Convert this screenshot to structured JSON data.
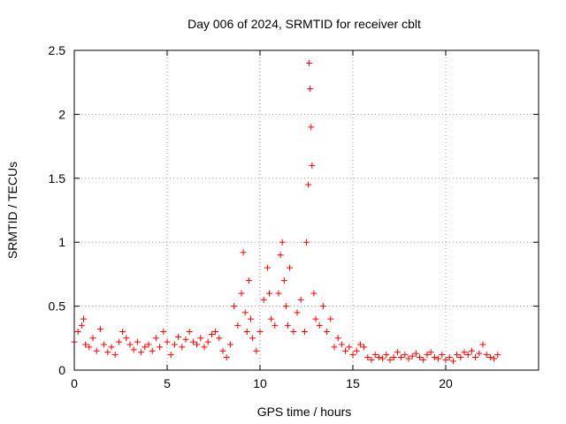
{
  "chart_data": {
    "type": "scatter",
    "title": "Day 006 of 2024, SRMTID for receiver cblt",
    "xlabel": "GPS time / hours",
    "ylabel": "SRMTID / TECUs",
    "xlim": [
      0,
      25
    ],
    "ylim": [
      0,
      2.5
    ],
    "xticks": [
      0,
      5,
      10,
      15,
      20
    ],
    "xtick_labels": [
      "0",
      "5",
      "10",
      "15",
      "20"
    ],
    "yticks": [
      0,
      0.5,
      1,
      1.5,
      2,
      2.5
    ],
    "ytick_labels": [
      "0",
      "0.5",
      "1",
      "1.5",
      "2",
      "2.5"
    ],
    "grid": true,
    "marker": "plus",
    "color": "#ff0000",
    "series": [
      {
        "name": "SRMTID",
        "x": [
          0.0,
          0.2,
          0.4,
          0.5,
          0.6,
          0.8,
          1.0,
          1.2,
          1.4,
          1.6,
          1.8,
          2.0,
          2.2,
          2.4,
          2.6,
          2.8,
          3.0,
          3.2,
          3.4,
          3.6,
          3.8,
          4.0,
          4.2,
          4.4,
          4.6,
          4.8,
          5.0,
          5.2,
          5.4,
          5.6,
          5.8,
          6.0,
          6.2,
          6.4,
          6.6,
          6.8,
          7.0,
          7.2,
          7.4,
          7.6,
          7.8,
          8.0,
          8.2,
          8.4,
          8.6,
          8.8,
          9.0,
          9.1,
          9.2,
          9.3,
          9.4,
          9.5,
          9.6,
          9.8,
          10.0,
          10.2,
          10.4,
          10.5,
          10.6,
          10.8,
          11.0,
          11.1,
          11.2,
          11.3,
          11.4,
          11.5,
          11.6,
          11.8,
          12.0,
          12.2,
          12.4,
          12.5,
          12.6,
          12.65,
          12.7,
          12.75,
          12.8,
          12.9,
          13.0,
          13.2,
          13.4,
          13.6,
          13.8,
          14.0,
          14.2,
          14.4,
          14.6,
          14.8,
          15.0,
          15.2,
          15.4,
          15.6,
          15.8,
          16.0,
          16.2,
          16.4,
          16.6,
          16.8,
          17.0,
          17.2,
          17.4,
          17.6,
          17.8,
          18.0,
          18.2,
          18.4,
          18.6,
          18.8,
          19.0,
          19.2,
          19.4,
          19.6,
          19.8,
          20.0,
          20.2,
          20.4,
          20.6,
          20.8,
          21.0,
          21.2,
          21.4,
          21.6,
          21.8,
          22.0,
          22.2,
          22.4,
          22.6,
          22.8
        ],
        "y": [
          0.22,
          0.3,
          0.35,
          0.4,
          0.2,
          0.18,
          0.25,
          0.15,
          0.32,
          0.2,
          0.14,
          0.18,
          0.12,
          0.22,
          0.3,
          0.25,
          0.2,
          0.16,
          0.22,
          0.14,
          0.18,
          0.2,
          0.15,
          0.25,
          0.18,
          0.3,
          0.22,
          0.12,
          0.2,
          0.26,
          0.18,
          0.24,
          0.3,
          0.22,
          0.2,
          0.25,
          0.18,
          0.22,
          0.28,
          0.3,
          0.25,
          0.15,
          0.1,
          0.2,
          0.5,
          0.35,
          0.6,
          0.92,
          0.45,
          0.3,
          0.7,
          0.4,
          0.25,
          0.15,
          0.3,
          0.55,
          0.8,
          0.6,
          0.4,
          0.35,
          0.6,
          0.9,
          1.0,
          0.7,
          0.5,
          0.35,
          0.8,
          0.3,
          0.45,
          0.55,
          0.3,
          1.0,
          1.45,
          2.4,
          2.2,
          1.9,
          1.6,
          0.6,
          0.4,
          0.35,
          0.5,
          0.3,
          0.4,
          0.18,
          0.25,
          0.2,
          0.15,
          0.18,
          0.12,
          0.15,
          0.2,
          0.18,
          0.1,
          0.08,
          0.12,
          0.1,
          0.09,
          0.12,
          0.08,
          0.1,
          0.14,
          0.1,
          0.12,
          0.09,
          0.11,
          0.13,
          0.1,
          0.08,
          0.12,
          0.14,
          0.1,
          0.09,
          0.12,
          0.08,
          0.1,
          0.07,
          0.12,
          0.1,
          0.14,
          0.12,
          0.15,
          0.1,
          0.13,
          0.2,
          0.12,
          0.1,
          0.09,
          0.12
        ]
      }
    ]
  }
}
